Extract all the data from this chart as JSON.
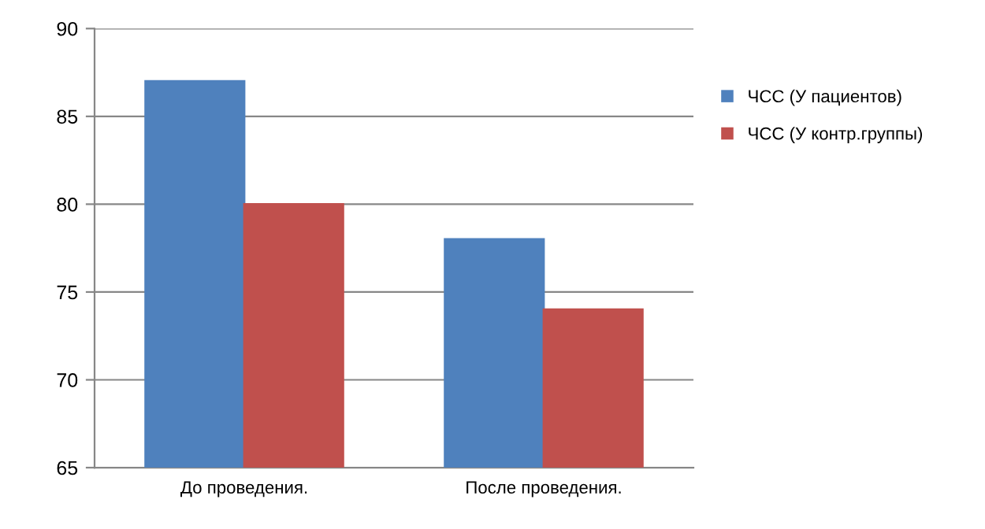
{
  "chart_data": {
    "type": "bar",
    "categories": [
      "До проведения.",
      "После проведения."
    ],
    "series": [
      {
        "name": "ЧСС (У пациентов)",
        "color": "#4f81bd",
        "values": [
          87,
          78
        ]
      },
      {
        "name": "ЧСС (У контр.группы)",
        "color": "#c0504d",
        "values": [
          80,
          74
        ]
      }
    ],
    "ylim": [
      65,
      90
    ],
    "yticks": [
      65,
      70,
      75,
      80,
      85,
      90
    ],
    "grid": "y",
    "legend": "right"
  }
}
